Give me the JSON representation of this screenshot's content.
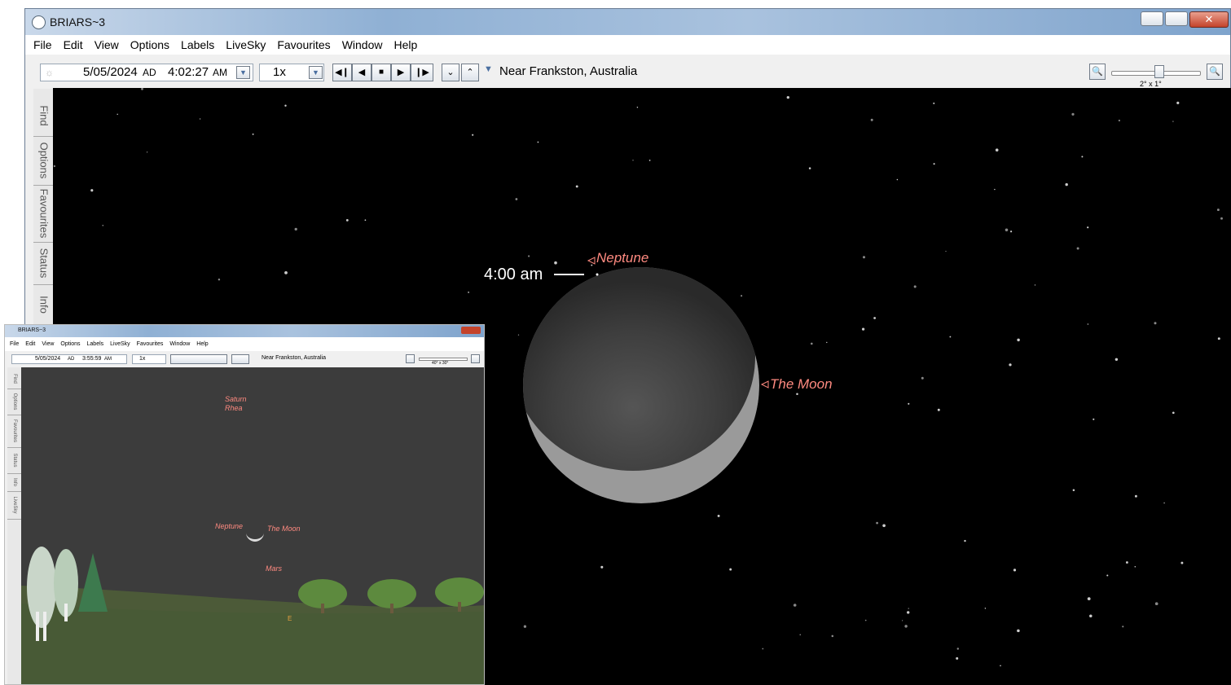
{
  "main_window": {
    "title": "BRIARS~3",
    "menu": [
      "File",
      "Edit",
      "View",
      "Options",
      "Labels",
      "LiveSky",
      "Favourites",
      "Window",
      "Help"
    ],
    "toolbar": {
      "date": "5/05/2024",
      "era": "AD",
      "time": "4:02:27",
      "meridiem": "AM",
      "rate": "1x",
      "location": "Near Frankston, Australia",
      "field_of_view": "2° x 1°"
    },
    "side_tabs": [
      "Find",
      "Options",
      "Favourites",
      "Status",
      "Info"
    ],
    "sky_labels": {
      "neptune": "Neptune",
      "moon": "The Moon"
    },
    "annotation": "4:00 am"
  },
  "inset_window": {
    "title": "BRIARS~3",
    "menu": [
      "File",
      "Edit",
      "View",
      "Options",
      "Labels",
      "LiveSky",
      "Favourites",
      "Window",
      "Help"
    ],
    "toolbar": {
      "date": "5/05/2024",
      "era": "AD",
      "time": "3:55:59",
      "meridiem": "AM",
      "rate": "1x",
      "location": "Near Frankston, Australia",
      "field_of_view": "40° x 30°"
    },
    "side_tabs": [
      "Find",
      "Options",
      "Favourites",
      "Status",
      "Info",
      "LiveSky"
    ],
    "sky_labels": {
      "saturn": "Saturn",
      "rhea": "Rhea",
      "neptune": "Neptune",
      "moon": "The Moon",
      "mars": "Mars"
    },
    "compass": "E"
  }
}
